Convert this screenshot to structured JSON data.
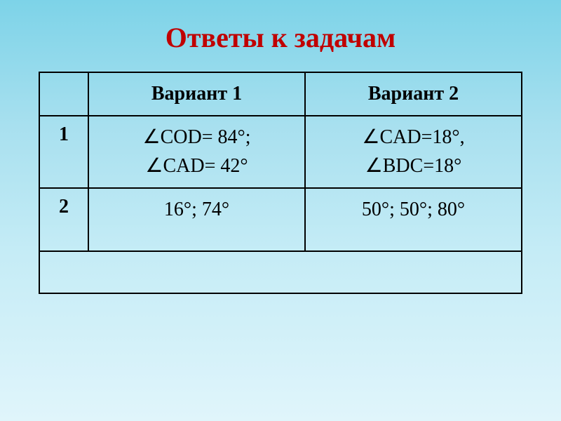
{
  "title": {
    "text": "Ответы к задачам",
    "fontsize": 40,
    "color": "#c00000"
  },
  "table": {
    "header_fontsize": 28,
    "cell_fontsize": 28,
    "border_color": "#000000",
    "columns": {
      "col1_header": "",
      "col2_header": "Вариант 1",
      "col3_header": "Вариант 2"
    },
    "rows": [
      {
        "num": "1",
        "var1_line1": "∠COD= 84°;",
        "var1_line2": "∠CAD= 42°",
        "var2_line1": "∠CAD=18°,",
        "var2_line2": "∠BDC=18°"
      },
      {
        "num": "2",
        "var1_line1": "16°; 74°",
        "var1_line2": "",
        "var2_line1": "50°; 50°; 80°",
        "var2_line2": ""
      }
    ]
  },
  "background": {
    "gradient_top": "#7dd3e8",
    "gradient_bottom": "#e0f5fb"
  }
}
